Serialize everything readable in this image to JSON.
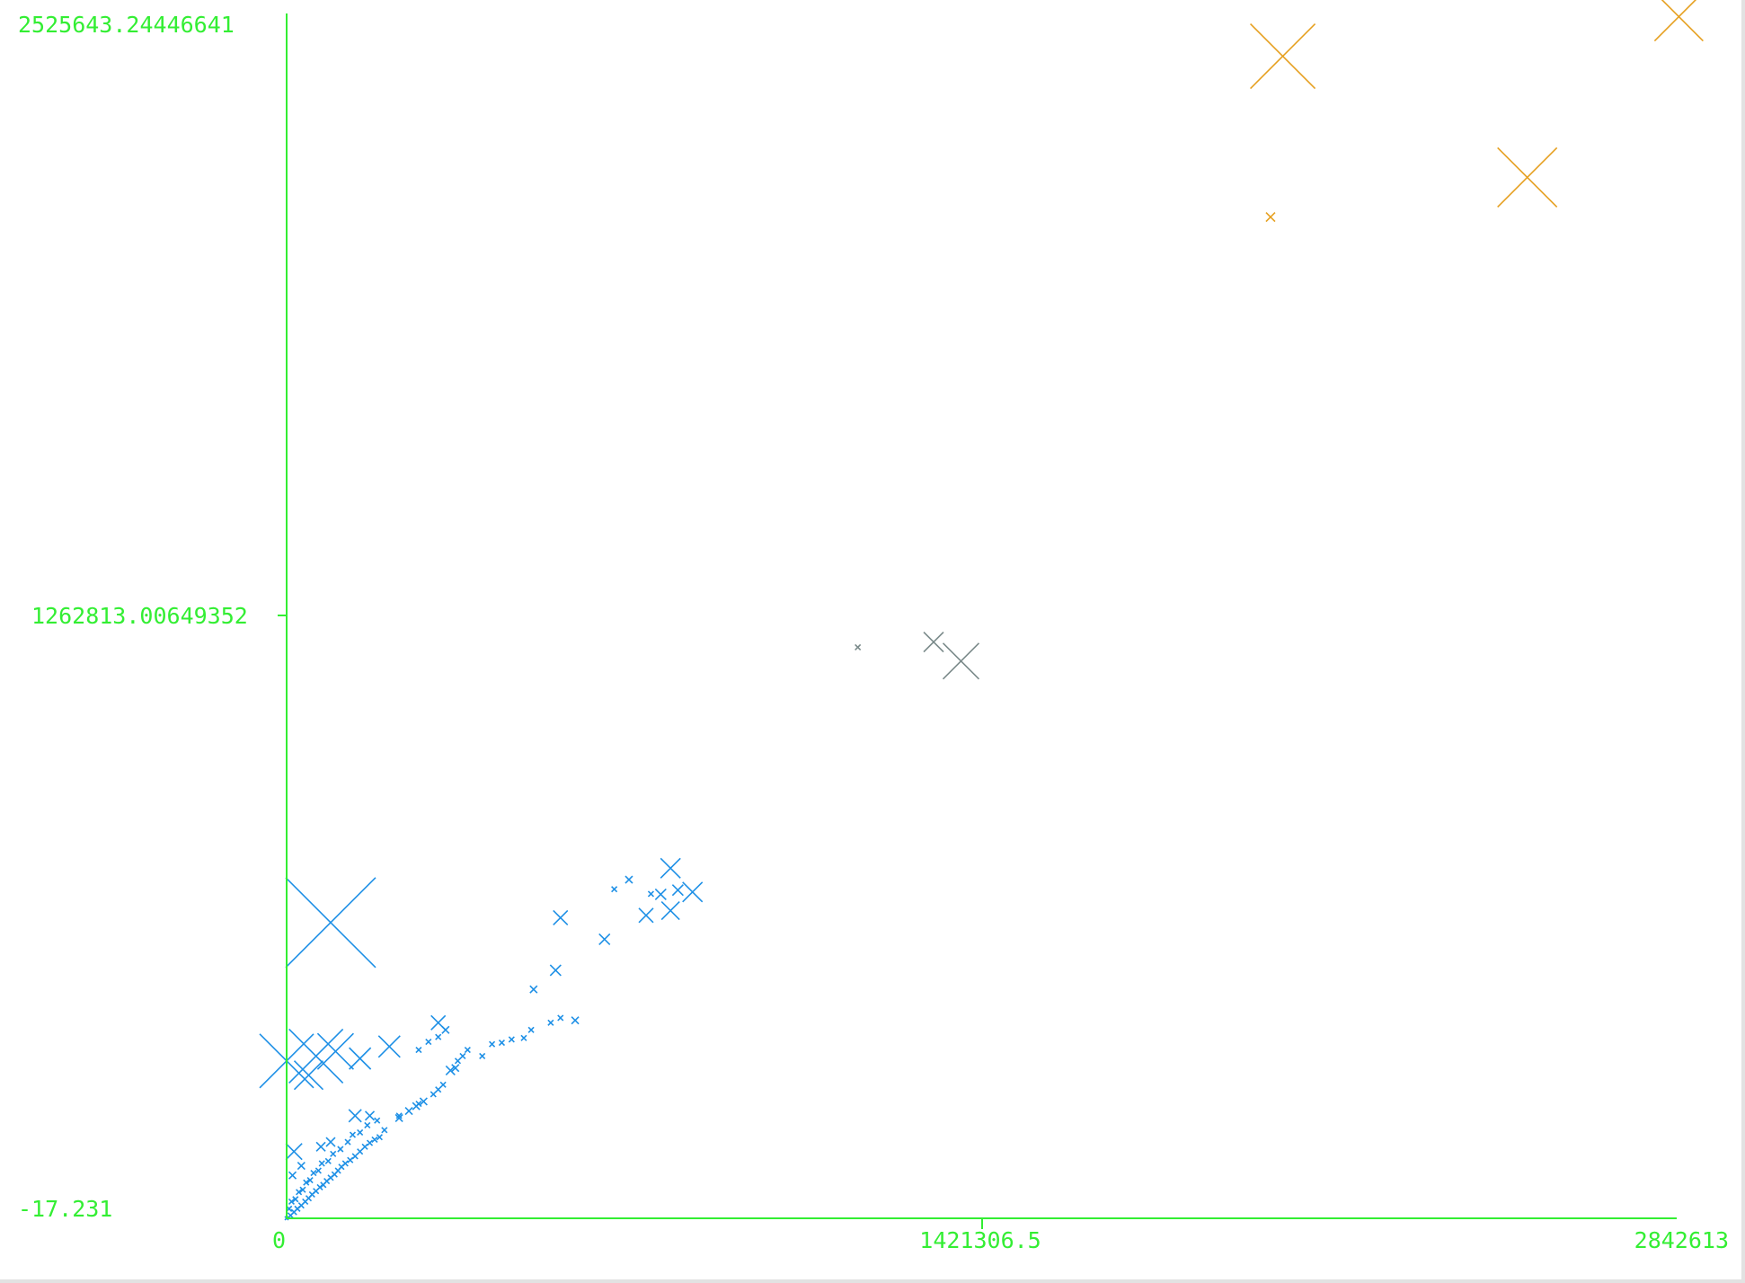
{
  "chart_data": {
    "type": "scatter",
    "title": "",
    "xlabel": "",
    "ylabel": "",
    "xlim": [
      0,
      2842613
    ],
    "ylim": [
      -17.231,
      2525643.24446641
    ],
    "grid": false,
    "legend": "none",
    "axis_color": "#33ee33",
    "marker": "x-cross",
    "marker_size_encodes": "relative magnitude",
    "x_tick_labels": [
      "0",
      "1421306.5",
      "2842613"
    ],
    "y_tick_labels": [
      "-17.231",
      "1262813.00649352",
      "2525643.24446641"
    ],
    "series": [
      {
        "color": "#1e90e6",
        "points": [
          {
            "x": 0,
            "y": 0,
            "s": 2
          },
          {
            "x": 8000,
            "y": 6000,
            "s": 3
          },
          {
            "x": 15000,
            "y": 13000,
            "s": 3
          },
          {
            "x": 22000,
            "y": 20000,
            "s": 3
          },
          {
            "x": 30000,
            "y": 27000,
            "s": 3
          },
          {
            "x": 38000,
            "y": 35000,
            "s": 3
          },
          {
            "x": 45000,
            "y": 42000,
            "s": 3
          },
          {
            "x": 52000,
            "y": 50000,
            "s": 3
          },
          {
            "x": 60000,
            "y": 57000,
            "s": 3
          },
          {
            "x": 68000,
            "y": 65000,
            "s": 3
          },
          {
            "x": 75000,
            "y": 70000,
            "s": 3
          },
          {
            "x": 82000,
            "y": 78000,
            "s": 3
          },
          {
            "x": 90000,
            "y": 85000,
            "s": 3
          },
          {
            "x": 98000,
            "y": 92000,
            "s": 3
          },
          {
            "x": 105000,
            "y": 100000,
            "s": 3
          },
          {
            "x": 112000,
            "y": 108000,
            "s": 3
          },
          {
            "x": 120000,
            "y": 115000,
            "s": 3
          },
          {
            "x": 130000,
            "y": 122000,
            "s": 3
          },
          {
            "x": 140000,
            "y": 130000,
            "s": 3
          },
          {
            "x": 150000,
            "y": 140000,
            "s": 3
          },
          {
            "x": 160000,
            "y": 150000,
            "s": 3
          },
          {
            "x": 170000,
            "y": 158000,
            "s": 3
          },
          {
            "x": 180000,
            "y": 165000,
            "s": 3
          },
          {
            "x": 190000,
            "y": 170000,
            "s": 3
          },
          {
            "x": 200000,
            "y": 185000,
            "s": 3
          },
          {
            "x": 5000,
            "y": 20000,
            "s": 3
          },
          {
            "x": 10000,
            "y": 35000,
            "s": 3
          },
          {
            "x": 18000,
            "y": 40000,
            "s": 3
          },
          {
            "x": 25000,
            "y": 55000,
            "s": 3
          },
          {
            "x": 33000,
            "y": 60000,
            "s": 3
          },
          {
            "x": 40000,
            "y": 75000,
            "s": 3
          },
          {
            "x": 48000,
            "y": 80000,
            "s": 3
          },
          {
            "x": 55000,
            "y": 95000,
            "s": 3
          },
          {
            "x": 65000,
            "y": 100000,
            "s": 3
          },
          {
            "x": 72000,
            "y": 115000,
            "s": 3
          },
          {
            "x": 85000,
            "y": 120000,
            "s": 3
          },
          {
            "x": 95000,
            "y": 135000,
            "s": 3
          },
          {
            "x": 110000,
            "y": 145000,
            "s": 3
          },
          {
            "x": 125000,
            "y": 160000,
            "s": 3
          },
          {
            "x": 135000,
            "y": 175000,
            "s": 3
          },
          {
            "x": 150000,
            "y": 180000,
            "s": 3
          },
          {
            "x": 165000,
            "y": 195000,
            "s": 3
          },
          {
            "x": 185000,
            "y": 205000,
            "s": 3
          },
          {
            "x": 12000,
            "y": 90000,
            "s": 4
          },
          {
            "x": 30000,
            "y": 110000,
            "s": 4
          },
          {
            "x": 70000,
            "y": 150000,
            "s": 5
          },
          {
            "x": 90000,
            "y": 160000,
            "s": 5
          },
          {
            "x": 140000,
            "y": 215000,
            "s": 7
          },
          {
            "x": 170000,
            "y": 215000,
            "s": 5
          },
          {
            "x": 230000,
            "y": 210000,
            "s": 4
          },
          {
            "x": 250000,
            "y": 225000,
            "s": 4
          },
          {
            "x": 265000,
            "y": 235000,
            "s": 4
          },
          {
            "x": 280000,
            "y": 245000,
            "s": 4
          },
          {
            "x": 300000,
            "y": 260000,
            "s": 3
          },
          {
            "x": 310000,
            "y": 270000,
            "s": 3
          },
          {
            "x": 320000,
            "y": 280000,
            "s": 3
          },
          {
            "x": 270000,
            "y": 240000,
            "s": 3
          },
          {
            "x": 230000,
            "y": 215000,
            "s": 3
          },
          {
            "x": 15000,
            "y": 140000,
            "s": 9
          },
          {
            "x": 270000,
            "y": 353000,
            "s": 3
          },
          {
            "x": 290000,
            "y": 370000,
            "s": 3
          },
          {
            "x": 310000,
            "y": 380000,
            "s": 3
          },
          {
            "x": 325000,
            "y": 395000,
            "s": 4
          },
          {
            "x": 335000,
            "y": 310000,
            "s": 5
          },
          {
            "x": 345000,
            "y": 315000,
            "s": 4
          },
          {
            "x": 350000,
            "y": 330000,
            "s": 3
          },
          {
            "x": 360000,
            "y": 340000,
            "s": 3
          },
          {
            "x": 370000,
            "y": 353000,
            "s": 3
          },
          {
            "x": 400000,
            "y": 340000,
            "s": 3
          },
          {
            "x": 420000,
            "y": 365000,
            "s": 3
          },
          {
            "x": 440000,
            "y": 368000,
            "s": 3
          },
          {
            "x": 460000,
            "y": 375000,
            "s": 3
          },
          {
            "x": 485000,
            "y": 378000,
            "s": 3
          },
          {
            "x": 500000,
            "y": 395000,
            "s": 3
          },
          {
            "x": 540000,
            "y": 410000,
            "s": 3
          },
          {
            "x": 560000,
            "y": 420000,
            "s": 3
          },
          {
            "x": 590000,
            "y": 415000,
            "s": 4
          },
          {
            "x": 310000,
            "y": 410000,
            "s": 8
          },
          {
            "x": 0,
            "y": 330000,
            "s": 30
          },
          {
            "x": 60000,
            "y": 340000,
            "s": 30
          },
          {
            "x": 100000,
            "y": 350000,
            "s": 20
          },
          {
            "x": 150000,
            "y": 335000,
            "s": 12
          },
          {
            "x": 210000,
            "y": 360000,
            "s": 12
          },
          {
            "x": 45000,
            "y": 300000,
            "s": 16
          },
          {
            "x": 90000,
            "y": 620000,
            "s": 50
          },
          {
            "x": 505000,
            "y": 480000,
            "s": 4
          },
          {
            "x": 550000,
            "y": 520000,
            "s": 6
          },
          {
            "x": 560000,
            "y": 630000,
            "s": 8
          },
          {
            "x": 650000,
            "y": 585000,
            "s": 6
          },
          {
            "x": 670000,
            "y": 690000,
            "s": 3
          },
          {
            "x": 700000,
            "y": 710000,
            "s": 4
          },
          {
            "x": 735000,
            "y": 635000,
            "s": 8
          },
          {
            "x": 765000,
            "y": 679000,
            "s": 6
          },
          {
            "x": 785000,
            "y": 734000,
            "s": 11
          },
          {
            "x": 800000,
            "y": 688000,
            "s": 6
          },
          {
            "x": 745000,
            "y": 680000,
            "s": 3
          },
          {
            "x": 785000,
            "y": 645000,
            "s": 10
          },
          {
            "x": 830000,
            "y": 684000,
            "s": 11
          }
        ]
      },
      {
        "color": "#7a8a8a",
        "points": [
          {
            "x": 1168000,
            "y": 1197000,
            "s": 3
          },
          {
            "x": 1323000,
            "y": 1208000,
            "s": 11
          },
          {
            "x": 1379000,
            "y": 1168000,
            "s": 20
          }
        ]
      },
      {
        "color": "#e6a020",
        "points": [
          {
            "x": 2012000,
            "y": 2099000,
            "s": 5
          },
          {
            "x": 2037000,
            "y": 2436000,
            "s": 36
          },
          {
            "x": 2537000,
            "y": 2182000,
            "s": 33
          },
          {
            "x": 2847000,
            "y": 2519000,
            "s": 27
          }
        ]
      }
    ]
  }
}
